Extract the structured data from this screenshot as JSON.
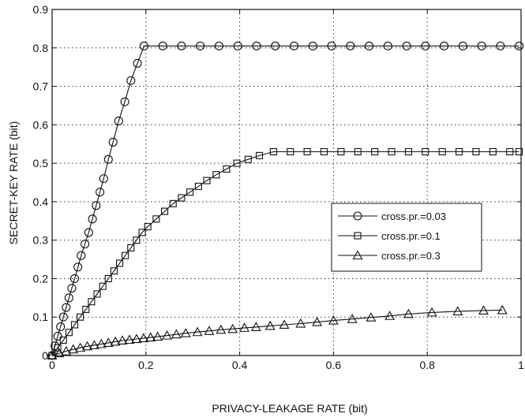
{
  "chart_data": {
    "type": "line",
    "xlabel": "PRIVACY-LEAKAGE RATE (bit)",
    "ylabel": "SECRET-KEY RATE (bit)",
    "xlim": [
      0,
      1
    ],
    "ylim": [
      0,
      0.9
    ],
    "xticks": [
      0,
      0.2,
      0.4,
      0.6,
      0.8,
      1
    ],
    "yticks": [
      0,
      0.1,
      0.2,
      0.3,
      0.4,
      0.5,
      0.6,
      0.7,
      0.8,
      0.9
    ],
    "xtick_labels": [
      "0",
      "0.2",
      "0.4",
      "0.6",
      "0.8",
      "1"
    ],
    "ytick_labels": [
      "0",
      "0.1",
      "0.2",
      "0.3",
      "0.4",
      "0.5",
      "0.6",
      "0.7",
      "0.8",
      "0.9"
    ],
    "grid": true,
    "legend_position": "right",
    "series": [
      {
        "name": "cross.pr.=0.03",
        "marker": "circle",
        "x": [
          0,
          0.006,
          0.012,
          0.018,
          0.024,
          0.03,
          0.036,
          0.042,
          0.048,
          0.055,
          0.062,
          0.07,
          0.078,
          0.086,
          0.094,
          0.102,
          0.11,
          0.12,
          0.13,
          0.142,
          0.155,
          0.168,
          0.182,
          0.196,
          0.236,
          0.276,
          0.316,
          0.356,
          0.396,
          0.436,
          0.476,
          0.516,
          0.556,
          0.596,
          0.636,
          0.676,
          0.716,
          0.756,
          0.796,
          0.836,
          0.876,
          0.916,
          0.956,
          0.996
        ],
        "y": [
          0,
          0.025,
          0.05,
          0.075,
          0.1,
          0.125,
          0.15,
          0.175,
          0.2,
          0.23,
          0.26,
          0.29,
          0.32,
          0.355,
          0.39,
          0.425,
          0.46,
          0.51,
          0.555,
          0.61,
          0.66,
          0.715,
          0.76,
          0.805,
          0.805,
          0.805,
          0.805,
          0.805,
          0.805,
          0.805,
          0.805,
          0.805,
          0.805,
          0.805,
          0.805,
          0.805,
          0.805,
          0.805,
          0.805,
          0.805,
          0.805,
          0.805,
          0.805,
          0.805
        ]
      },
      {
        "name": "cross.pr.=0.1",
        "marker": "square",
        "x": [
          0,
          0.012,
          0.024,
          0.036,
          0.048,
          0.06,
          0.072,
          0.084,
          0.096,
          0.108,
          0.12,
          0.132,
          0.144,
          0.156,
          0.168,
          0.18,
          0.192,
          0.204,
          0.222,
          0.24,
          0.258,
          0.276,
          0.294,
          0.312,
          0.33,
          0.35,
          0.372,
          0.394,
          0.418,
          0.442,
          0.472,
          0.508,
          0.544,
          0.58,
          0.616,
          0.652,
          0.688,
          0.724,
          0.76,
          0.796,
          0.832,
          0.868,
          0.904,
          0.94,
          0.976,
          0.996
        ],
        "y": [
          0,
          0.02,
          0.04,
          0.06,
          0.08,
          0.1,
          0.12,
          0.14,
          0.16,
          0.18,
          0.2,
          0.22,
          0.24,
          0.26,
          0.28,
          0.3,
          0.32,
          0.335,
          0.355,
          0.375,
          0.395,
          0.41,
          0.425,
          0.44,
          0.455,
          0.47,
          0.485,
          0.5,
          0.51,
          0.52,
          0.53,
          0.53,
          0.53,
          0.53,
          0.53,
          0.53,
          0.53,
          0.53,
          0.53,
          0.53,
          0.53,
          0.53,
          0.53,
          0.53,
          0.53,
          0.53
        ]
      },
      {
        "name": "cross.pr.=0.3",
        "marker": "triangle",
        "x": [
          0,
          0.015,
          0.03,
          0.045,
          0.06,
          0.075,
          0.09,
          0.105,
          0.12,
          0.135,
          0.15,
          0.165,
          0.18,
          0.195,
          0.21,
          0.225,
          0.245,
          0.265,
          0.285,
          0.31,
          0.335,
          0.36,
          0.385,
          0.41,
          0.435,
          0.465,
          0.495,
          0.53,
          0.565,
          0.6,
          0.64,
          0.68,
          0.72,
          0.76,
          0.81,
          0.865,
          0.92,
          0.96
        ],
        "y": [
          0,
          0.006,
          0.011,
          0.016,
          0.02,
          0.024,
          0.027,
          0.03,
          0.033,
          0.036,
          0.039,
          0.041,
          0.043,
          0.045,
          0.047,
          0.049,
          0.052,
          0.055,
          0.058,
          0.061,
          0.064,
          0.067,
          0.069,
          0.072,
          0.074,
          0.077,
          0.08,
          0.083,
          0.087,
          0.091,
          0.095,
          0.099,
          0.103,
          0.108,
          0.112,
          0.115,
          0.117,
          0.118
        ]
      }
    ]
  }
}
